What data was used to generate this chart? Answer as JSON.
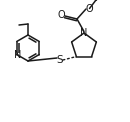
{
  "bg_color": "#ffffff",
  "line_color": "#1a1a1a",
  "lw": 1.1,
  "fs": 6.5,
  "figsize": [
    1.3,
    1.22
  ],
  "dpi": 100,
  "xlim": [
    0,
    130
  ],
  "ylim": [
    0,
    122
  ]
}
